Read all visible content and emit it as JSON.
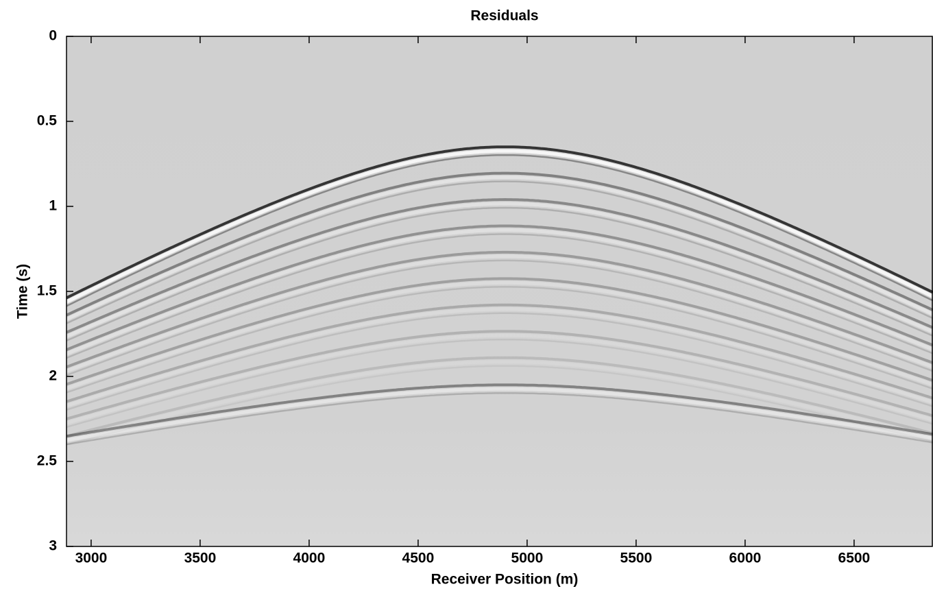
{
  "chart_data": {
    "type": "image",
    "title": "Residuals",
    "x_label": "Receiver Position (m)",
    "y_label": "Time (s)",
    "xlim": [
      2887,
      6862
    ],
    "ylim": [
      0,
      3
    ],
    "y_inverted": true,
    "xticks": [
      3000,
      3500,
      4000,
      4500,
      5000,
      5500,
      6000,
      6500
    ],
    "yticks": [
      0,
      0.5,
      1,
      1.5,
      2,
      2.5,
      3
    ],
    "colormap": "gray"
  }
}
